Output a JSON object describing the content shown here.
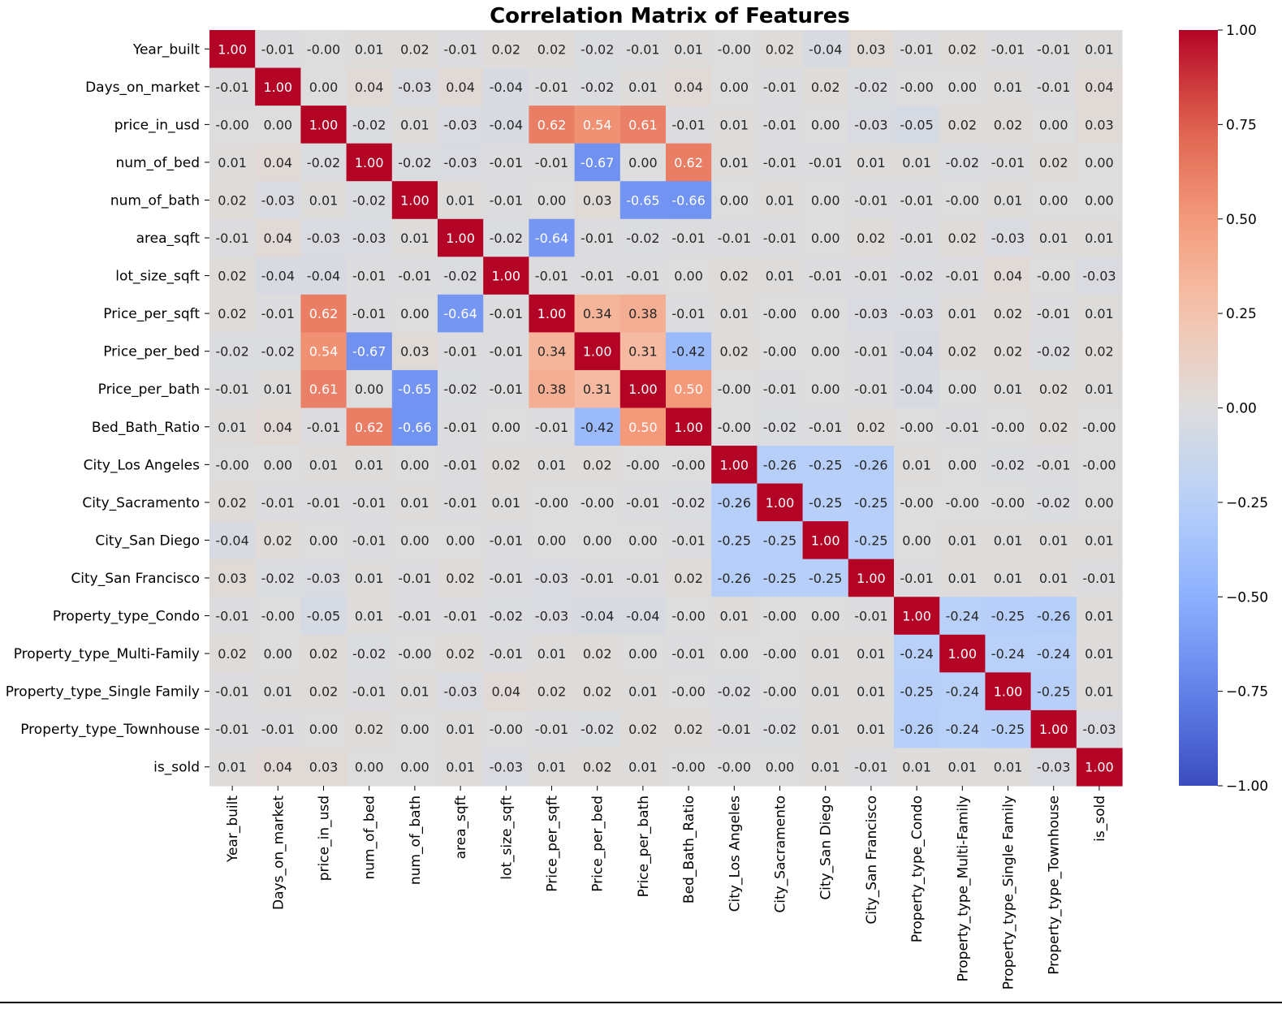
{
  "chart_data": {
    "type": "heatmap",
    "title": "Correlation Matrix of Features",
    "colormap": "coolwarm",
    "vmin": -1.0,
    "vmax": 1.0,
    "features": [
      "Year_built",
      "Days_on_market",
      "price_in_usd",
      "num_of_bed",
      "num_of_bath",
      "area_sqft",
      "lot_size_sqft",
      "Price_per_sqft",
      "Price_per_bed",
      "Price_per_bath",
      "Bed_Bath_Ratio",
      "City_Los Angeles",
      "City_Sacramento",
      "City_San Diego",
      "City_San Francisco",
      "Property_type_Condo",
      "Property_type_Multi-Family",
      "Property_type_Single Family",
      "Property_type_Townhouse",
      "is_sold"
    ],
    "values": [
      [
        1.0,
        -0.01,
        -0.0,
        0.01,
        0.02,
        -0.01,
        0.02,
        0.02,
        -0.02,
        -0.01,
        0.01,
        -0.0,
        0.02,
        -0.04,
        0.03,
        -0.01,
        0.02,
        -0.01,
        -0.01,
        0.01
      ],
      [
        -0.01,
        1.0,
        0.0,
        0.04,
        -0.03,
        0.04,
        -0.04,
        -0.01,
        -0.02,
        0.01,
        0.04,
        0.0,
        -0.01,
        0.02,
        -0.02,
        -0.0,
        0.0,
        0.01,
        -0.01,
        0.04
      ],
      [
        -0.0,
        0.0,
        1.0,
        -0.02,
        0.01,
        -0.03,
        -0.04,
        0.62,
        0.54,
        0.61,
        -0.01,
        0.01,
        -0.01,
        0.0,
        -0.03,
        -0.05,
        0.02,
        0.02,
        0.0,
        0.03
      ],
      [
        0.01,
        0.04,
        -0.02,
        1.0,
        -0.02,
        -0.03,
        -0.01,
        -0.01,
        -0.67,
        0.0,
        0.62,
        0.01,
        -0.01,
        -0.01,
        0.01,
        0.01,
        -0.02,
        -0.01,
        0.02,
        0.0
      ],
      [
        0.02,
        -0.03,
        0.01,
        -0.02,
        1.0,
        0.01,
        -0.01,
        0.0,
        0.03,
        -0.65,
        -0.66,
        0.0,
        0.01,
        0.0,
        -0.01,
        -0.01,
        -0.0,
        0.01,
        0.0,
        0.0
      ],
      [
        -0.01,
        0.04,
        -0.03,
        -0.03,
        0.01,
        1.0,
        -0.02,
        -0.64,
        -0.01,
        -0.02,
        -0.01,
        -0.01,
        -0.01,
        0.0,
        0.02,
        -0.01,
        0.02,
        -0.03,
        0.01,
        0.01
      ],
      [
        0.02,
        -0.04,
        -0.04,
        -0.01,
        -0.01,
        -0.02,
        1.0,
        -0.01,
        -0.01,
        -0.01,
        0.0,
        0.02,
        0.01,
        -0.01,
        -0.01,
        -0.02,
        -0.01,
        0.04,
        -0.0,
        -0.03
      ],
      [
        0.02,
        -0.01,
        0.62,
        -0.01,
        0.0,
        -0.64,
        -0.01,
        1.0,
        0.34,
        0.38,
        -0.01,
        0.01,
        -0.0,
        0.0,
        -0.03,
        -0.03,
        0.01,
        0.02,
        -0.01,
        0.01
      ],
      [
        -0.02,
        -0.02,
        0.54,
        -0.67,
        0.03,
        -0.01,
        -0.01,
        0.34,
        1.0,
        0.31,
        -0.42,
        0.02,
        -0.0,
        0.0,
        -0.01,
        -0.04,
        0.02,
        0.02,
        -0.02,
        0.02
      ],
      [
        -0.01,
        0.01,
        0.61,
        0.0,
        -0.65,
        -0.02,
        -0.01,
        0.38,
        0.31,
        1.0,
        0.5,
        -0.0,
        -0.01,
        0.0,
        -0.01,
        -0.04,
        0.0,
        0.01,
        0.02,
        0.01
      ],
      [
        0.01,
        0.04,
        -0.01,
        0.62,
        -0.66,
        -0.01,
        0.0,
        -0.01,
        -0.42,
        0.5,
        1.0,
        -0.0,
        -0.02,
        -0.01,
        0.02,
        -0.0,
        -0.01,
        -0.0,
        0.02,
        -0.0
      ],
      [
        -0.0,
        0.0,
        0.01,
        0.01,
        0.0,
        -0.01,
        0.02,
        0.01,
        0.02,
        -0.0,
        -0.0,
        1.0,
        -0.26,
        -0.25,
        -0.26,
        0.01,
        0.0,
        -0.02,
        -0.01,
        -0.0
      ],
      [
        0.02,
        -0.01,
        -0.01,
        -0.01,
        0.01,
        -0.01,
        0.01,
        -0.0,
        -0.0,
        -0.01,
        -0.02,
        -0.26,
        1.0,
        -0.25,
        -0.25,
        -0.0,
        -0.0,
        -0.0,
        -0.02,
        0.0
      ],
      [
        -0.04,
        0.02,
        0.0,
        -0.01,
        0.0,
        0.0,
        -0.01,
        0.0,
        0.0,
        0.0,
        -0.01,
        -0.25,
        -0.25,
        1.0,
        -0.25,
        0.0,
        0.01,
        0.01,
        0.01,
        0.01
      ],
      [
        0.03,
        -0.02,
        -0.03,
        0.01,
        -0.01,
        0.02,
        -0.01,
        -0.03,
        -0.01,
        -0.01,
        0.02,
        -0.26,
        -0.25,
        -0.25,
        1.0,
        -0.01,
        0.01,
        0.01,
        0.01,
        -0.01
      ],
      [
        -0.01,
        -0.0,
        -0.05,
        0.01,
        -0.01,
        -0.01,
        -0.02,
        -0.03,
        -0.04,
        -0.04,
        -0.0,
        0.01,
        -0.0,
        0.0,
        -0.01,
        1.0,
        -0.24,
        -0.25,
        -0.26,
        0.01
      ],
      [
        0.02,
        0.0,
        0.02,
        -0.02,
        -0.0,
        0.02,
        -0.01,
        0.01,
        0.02,
        0.0,
        -0.01,
        0.0,
        -0.0,
        0.01,
        0.01,
        -0.24,
        1.0,
        -0.24,
        -0.24,
        0.01
      ],
      [
        -0.01,
        0.01,
        0.02,
        -0.01,
        0.01,
        -0.03,
        0.04,
        0.02,
        0.02,
        0.01,
        -0.0,
        -0.02,
        -0.0,
        0.01,
        0.01,
        -0.25,
        -0.24,
        1.0,
        -0.25,
        0.01
      ],
      [
        -0.01,
        -0.01,
        0.0,
        0.02,
        0.0,
        0.01,
        -0.0,
        -0.01,
        -0.02,
        0.02,
        0.02,
        -0.01,
        -0.02,
        0.01,
        0.01,
        -0.26,
        -0.24,
        -0.25,
        1.0,
        -0.03
      ],
      [
        0.01,
        0.04,
        0.03,
        0.0,
        0.0,
        0.01,
        -0.03,
        0.01,
        0.02,
        0.01,
        -0.0,
        -0.0,
        0.0,
        0.01,
        -0.01,
        0.01,
        0.01,
        0.01,
        -0.03,
        1.0
      ]
    ],
    "colorbar_ticks": [
      1.0,
      0.75,
      0.5,
      0.25,
      0.0,
      -0.25,
      -0.5,
      -0.75,
      -1.0
    ],
    "colorbar_tick_labels": [
      "1.00",
      "0.75",
      "0.50",
      "0.25",
      "0.00",
      "−0.25",
      "−0.50",
      "−0.75",
      "−1.00"
    ]
  }
}
